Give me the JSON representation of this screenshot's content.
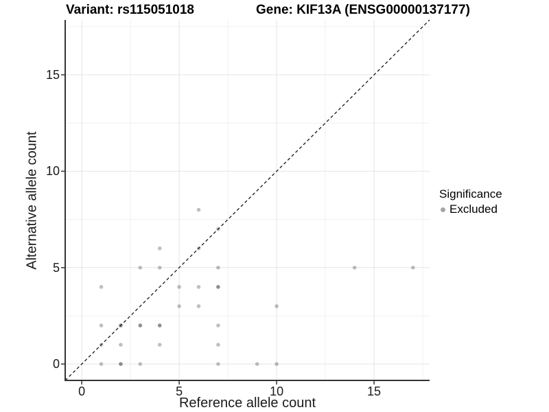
{
  "header": {
    "variant_title": "Variant: rs115051018",
    "gene_title": "Gene: KIF13A (ENSG00000137177)"
  },
  "axes": {
    "x_label": "Reference allele count",
    "y_label": "Alternative allele count",
    "x_tick_labels": [
      "0",
      "5",
      "10",
      "15"
    ],
    "y_tick_labels": [
      "0",
      "5",
      "10",
      "15"
    ]
  },
  "legend": {
    "title": "Significance",
    "items": [
      {
        "label": "Excluded",
        "swatch_color": "#a6a6a6"
      }
    ]
  },
  "colors": {
    "point": "#000000",
    "grid_major": "#e4e4e4",
    "grid_minor": "#f0f0f0",
    "axis_line": "#333333",
    "diagonal_line": "#1a1a1a",
    "background": "#ffffff"
  },
  "chart_data": {
    "type": "scatter",
    "title": "Variant: rs115051018   Gene: KIF13A (ENSG00000137177)",
    "xlabel": "Reference allele count",
    "ylabel": "Alternative allele count",
    "xlim": [
      -0.85,
      17.85
    ],
    "ylim": [
      -0.85,
      17.85
    ],
    "x_major_ticks": [
      0,
      5,
      10,
      15
    ],
    "y_major_ticks": [
      0,
      5,
      10,
      15
    ],
    "x_minor_gridlines": [
      2.5,
      7.5,
      12.5,
      17.5
    ],
    "y_minor_gridlines": [
      2.5,
      7.5,
      12.5,
      17.5
    ],
    "grid": true,
    "legend_position": "right",
    "identity_line": {
      "type": "y=x",
      "style": "dashed"
    },
    "point_base_opacity": 0.25,
    "series": [
      {
        "name": "Excluded",
        "points": [
          {
            "x": 1,
            "y": 0,
            "n": 1
          },
          {
            "x": 2,
            "y": 0,
            "n": 2
          },
          {
            "x": 3,
            "y": 0,
            "n": 1
          },
          {
            "x": 7,
            "y": 0,
            "n": 1
          },
          {
            "x": 9,
            "y": 0,
            "n": 1
          },
          {
            "x": 10,
            "y": 0,
            "n": 1
          },
          {
            "x": 1,
            "y": 1,
            "n": 1
          },
          {
            "x": 2,
            "y": 1,
            "n": 1
          },
          {
            "x": 4,
            "y": 1,
            "n": 1
          },
          {
            "x": 7,
            "y": 1,
            "n": 1
          },
          {
            "x": 1,
            "y": 2,
            "n": 1
          },
          {
            "x": 2,
            "y": 2,
            "n": 2
          },
          {
            "x": 3,
            "y": 2,
            "n": 2
          },
          {
            "x": 4,
            "y": 2,
            "n": 2
          },
          {
            "x": 7,
            "y": 2,
            "n": 1
          },
          {
            "x": 5,
            "y": 3,
            "n": 1
          },
          {
            "x": 6,
            "y": 3,
            "n": 1
          },
          {
            "x": 10,
            "y": 3,
            "n": 1
          },
          {
            "x": 1,
            "y": 4,
            "n": 1
          },
          {
            "x": 5,
            "y": 4,
            "n": 1
          },
          {
            "x": 6,
            "y": 4,
            "n": 1
          },
          {
            "x": 7,
            "y": 4,
            "n": 2
          },
          {
            "x": 3,
            "y": 5,
            "n": 1
          },
          {
            "x": 4,
            "y": 5,
            "n": 1
          },
          {
            "x": 7,
            "y": 5,
            "n": 1
          },
          {
            "x": 14,
            "y": 5,
            "n": 1
          },
          {
            "x": 17,
            "y": 5,
            "n": 1
          },
          {
            "x": 4,
            "y": 6,
            "n": 1
          },
          {
            "x": 6,
            "y": 6,
            "n": 1
          },
          {
            "x": 7,
            "y": 7,
            "n": 1
          },
          {
            "x": 6,
            "y": 8,
            "n": 1
          }
        ]
      }
    ]
  }
}
